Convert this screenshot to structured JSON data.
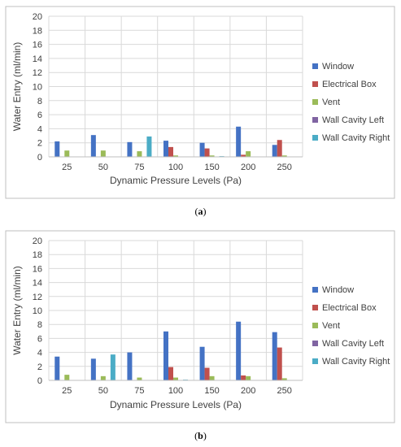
{
  "chart_data": [
    {
      "type": "bar",
      "panel": "a",
      "caption": "(a)",
      "caption_letter": "a",
      "title": "",
      "xlabel": "Dynamic Pressure Levels (Pa)",
      "ylabel": "Water Entry (ml/min)",
      "ylim": [
        0,
        20
      ],
      "yticks": [
        0,
        2,
        4,
        6,
        8,
        10,
        12,
        14,
        16,
        18,
        20
      ],
      "grid": true,
      "legend_position": "right",
      "categories": [
        "25",
        "50",
        "75",
        "100",
        "150",
        "200",
        "250"
      ],
      "series": [
        {
          "name": "Window",
          "color": "#4472C4",
          "values": [
            2.2,
            3.1,
            2.1,
            2.3,
            2.0,
            4.3,
            1.7
          ]
        },
        {
          "name": "Electrical Box",
          "color": "#C0504D",
          "values": [
            0,
            0,
            0,
            1.4,
            1.2,
            0.3,
            2.4
          ]
        },
        {
          "name": "Vent",
          "color": "#9BBB59",
          "values": [
            0.9,
            0.9,
            0.8,
            0.2,
            0.2,
            0.8,
            0.2
          ]
        },
        {
          "name": "Wall Cavity Left",
          "color": "#8064A2",
          "values": [
            0,
            0,
            0,
            0,
            0,
            0,
            0
          ]
        },
        {
          "name": "Wall Cavity Right",
          "color": "#4BACC6",
          "values": [
            0,
            0,
            2.9,
            0,
            0.1,
            0,
            0
          ]
        }
      ]
    },
    {
      "type": "bar",
      "panel": "b",
      "caption": "(b)",
      "caption_letter": "b",
      "title": "",
      "xlabel": "Dynamic Pressure Levels (Pa)",
      "ylabel": "Water Entry (ml/min)",
      "ylim": [
        0,
        20
      ],
      "yticks": [
        0,
        2,
        4,
        6,
        8,
        10,
        12,
        14,
        16,
        18,
        20
      ],
      "grid": true,
      "legend_position": "right",
      "categories": [
        "25",
        "50",
        "75",
        "100",
        "150",
        "200",
        "250"
      ],
      "series": [
        {
          "name": "Window",
          "color": "#4472C4",
          "values": [
            3.4,
            3.1,
            4.0,
            7.0,
            4.8,
            8.4,
            6.9
          ]
        },
        {
          "name": "Electrical Box",
          "color": "#C0504D",
          "values": [
            0,
            0,
            0,
            1.9,
            1.8,
            0.7,
            4.7
          ]
        },
        {
          "name": "Vent",
          "color": "#9BBB59",
          "values": [
            0.8,
            0.6,
            0.4,
            0.4,
            0.6,
            0.6,
            0.3
          ]
        },
        {
          "name": "Wall Cavity Left",
          "color": "#8064A2",
          "values": [
            0,
            0,
            0,
            0,
            0,
            0,
            0
          ]
        },
        {
          "name": "Wall Cavity Right",
          "color": "#4BACC6",
          "values": [
            0,
            3.7,
            0,
            0.1,
            0,
            0,
            0
          ]
        }
      ]
    }
  ]
}
